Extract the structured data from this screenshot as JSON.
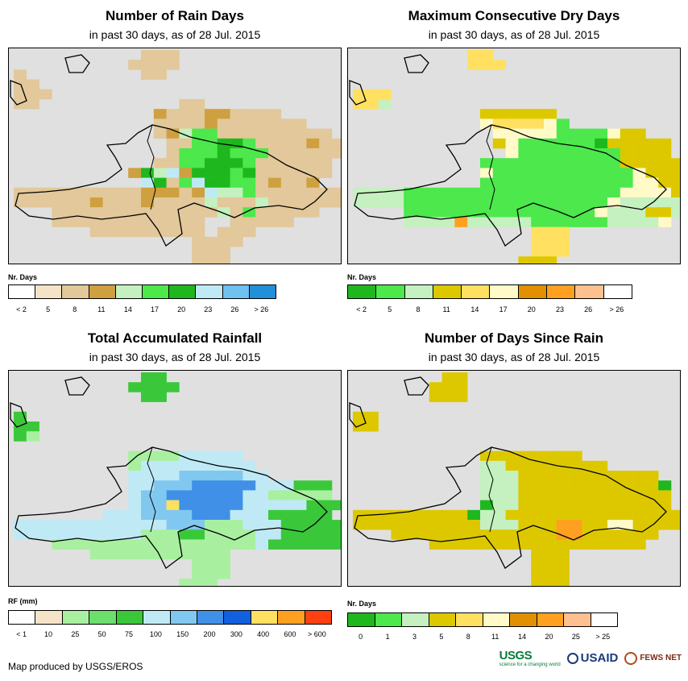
{
  "panels": [
    {
      "title": "Number of Rain Days",
      "subtitle": "in past 30 days, as of 28 Jul. 2015",
      "legend_title": "Nr. Days",
      "legend_colors": [
        "#ffffff",
        "#f5e3c8",
        "#e2c89a",
        "#cfa040",
        "#c5f0c0",
        "#4ce84c",
        "#1eb81e",
        "#bfeaf5",
        "#70c0f0",
        "#2090d8"
      ],
      "legend_labels": [
        "< 2",
        "5",
        "8",
        "11",
        "14",
        "17",
        "20",
        "23",
        "26",
        "> 26"
      ],
      "grid": [
        "..........aaa.............",
        ".........bbbb.............",
        "a.........bb..............",
        "aa........................",
        "bbb.......................",
        "aa...........ba...........",
        "...........cbaaccaaaa.....",
        "...........aabbcbbbbbbb...",
        "...........bcdeeaaaabbaaa.",
        "............baeeffeaaabcaa",
        "............aeeegeeebaaaab",
        "...........aaeegggeaaaaaa.",
        ".........cgdhcgggefbaaaab.",
        "..........hgaehffeeacaac..",
        "bbbbbbbbbbcccbchddeaaaaaaaab",
        "bbbbbbcbbbcbbbbdbbbdbaaaaab",
        "...aabbbbbbbbbbbdbeaaaaa..",
        "...aaaaabbbaaaa..aaaaa....",
        "......aaaaaaaaa.aaa.......",
        "..............aaaa........",
        "..............aaa.........",
        "..............aaa........."
      ],
      "grid_colors": {
        "a": "#e2c89a",
        "b": "#e2c89a",
        "c": "#cfa040",
        "d": "#c5f0c0",
        "e": "#4ce84c",
        "f": "#1eb81e",
        "g": "#1eb81e",
        "h": "#bfeaf5"
      }
    },
    {
      "title": "Maximum Consecutive Dry Days",
      "subtitle": "in past 30 days, as of 28 Jul. 2015",
      "legend_title": "Nr. Days",
      "legend_colors": [
        "#1eb81e",
        "#4ce84c",
        "#c5f0c0",
        "#ddc800",
        "#ffe060",
        "#fffac8",
        "#e09000",
        "#ffa020",
        "#ffc090",
        "#ffffff"
      ],
      "legend_labels": [
        "< 2",
        "5",
        "8",
        "11",
        "14",
        "17",
        "20",
        "23",
        "26",
        "> 26"
      ],
      "grid": [
        ".........bb...............",
        ".........bbb..............",
        "..........................",
        "..........................",
        "bbb.......................",
        "bbc.......................",
        "..........aaaaaa..........",
        "..........dbbbbde.........",
        "...........dddddeeeedaa...",
        "...........adeeeeeefaaaaa.",
        "............deeeeeeeeaaaa.",
        "..........eeeeeeeeeeeaaaaa",
        "..........deeeeeeeeeeedaaa",
        "..........eeeeeeeeeeeeddaaa",
        "cccceeeeeeeeeeeeeeeeeddddaa",
        "cccceeeeeeeeeeeeeeeedcccccc",
        "....eeeeeeeeeeeeeeedcccaac.",
        "....cccchccccceeeeeeccccd..",
        "..............bbb.........",
        "..............bbb.........",
        "..............bbb.........",
        ".............aaa.........."
      ],
      "grid_colors": {
        "a": "#ddc800",
        "b": "#ffe060",
        "c": "#c5f0c0",
        "d": "#fffac8",
        "e": "#4ce84c",
        "f": "#1eb81e",
        "h": "#ffa020"
      }
    },
    {
      "title": "Total Accumulated Rainfall",
      "subtitle": "in past 30 days, as of 28 Jul. 2015",
      "legend_title": "RF (mm)",
      "legend_colors": [
        "#ffffff",
        "#f5e3c8",
        "#a8f0a0",
        "#6cde6c",
        "#3ac83a",
        "#bfeaf5",
        "#80c8f0",
        "#4090e8",
        "#1060e0",
        "#ffe060",
        "#ffa020",
        "#ff4010"
      ],
      "legend_labels": [
        "< 1",
        "10",
        "25",
        "50",
        "75",
        "100",
        "150",
        "200",
        "300",
        "400",
        "600",
        "> 600"
      ],
      "grid": [
        "..........aa..............",
        ".........aaaa.............",
        "..........aa..............",
        "..........................",
        "a.........................",
        "aa........................",
        "ab........................",
        "..........................",
        ".........bbbbccccc........",
        ".........bccccccccc.......",
        ".........ccccdddddcc......",
        ".........ccdddeeeeecccaaa.",
        ".........cddeeeeeeccbbbbb.",
        ".........cddfeeeeecccccaaa",
        ".......cccddddeeecccaaaaa.",
        "ccccccccccccdddbbbcccaaaaac",
        "ccccccccccbbbaabbbbccaaaaa.",
        "...bbbbbbbbbbbbbbbbcaaaaaa.",
        "......bbbbbbbbbbb..........",
        "..............bbb.........",
        "..............bbb.........",
        ".............bbb.........."
      ],
      "grid_colors": {
        "a": "#3ac83a",
        "b": "#a8f0a0",
        "c": "#bfeaf5",
        "d": "#80c8f0",
        "e": "#4090e8",
        "f": "#ffe060"
      }
    },
    {
      "title": "Number of Days Since Rain",
      "subtitle": "in past 30 days, as of 28 Jul. 2015",
      "legend_title": "Nr. Days",
      "legend_colors": [
        "#1eb81e",
        "#4ce84c",
        "#c5f0c0",
        "#ddc800",
        "#ffe060",
        "#fffac8",
        "#e09000",
        "#ffa020",
        "#ffc090",
        "#ffffff"
      ],
      "legend_labels": [
        "0",
        "1",
        "3",
        "5",
        "8",
        "11",
        "14",
        "20",
        "25",
        "> 25"
      ],
      "grid": [
        ".......bb.................",
        "......bbb.................",
        "......bbb.................",
        "..........................",
        "aa........................",
        "aa........................",
        "..........................",
        "..........................",
        "..........aaaaaaaa........",
        "..........ccaaaaaaaa......",
        "..........cccaaaaaaaaaaa..",
        "..........cccaaaaaaaaaaae.",
        "..........cccaaaaaaaaaaaa.",
        "..........dccaaaaaaaaaaaa.",
        "aaaaaaaaadccaaaaaaaaaaaaaa",
        "aaaaaaaaaacccaaahhaaffaaaa",
        "...aaaaaaaaaaaaahhaaaaaa..",
        "......aaaaaaaaaaaaaaaaa...",
        "..............aaa.........",
        "..............aaa.........",
        "..............aaa.........",
        "..............aaa........."
      ],
      "grid_colors": {
        "a": "#ddc800",
        "b": "#ddc800",
        "c": "#c5f0c0",
        "d": "#1eb81e",
        "e": "#1eb81e",
        "f": "#fffac8",
        "h": "#ffa020"
      }
    }
  ],
  "footer": {
    "credit": "Map produced by USGS/EROS"
  },
  "logos": {
    "usgs": "USGS",
    "usgs_tagline": "science for a changing world",
    "usaid": "USAID",
    "fews": "FEWS NET"
  }
}
